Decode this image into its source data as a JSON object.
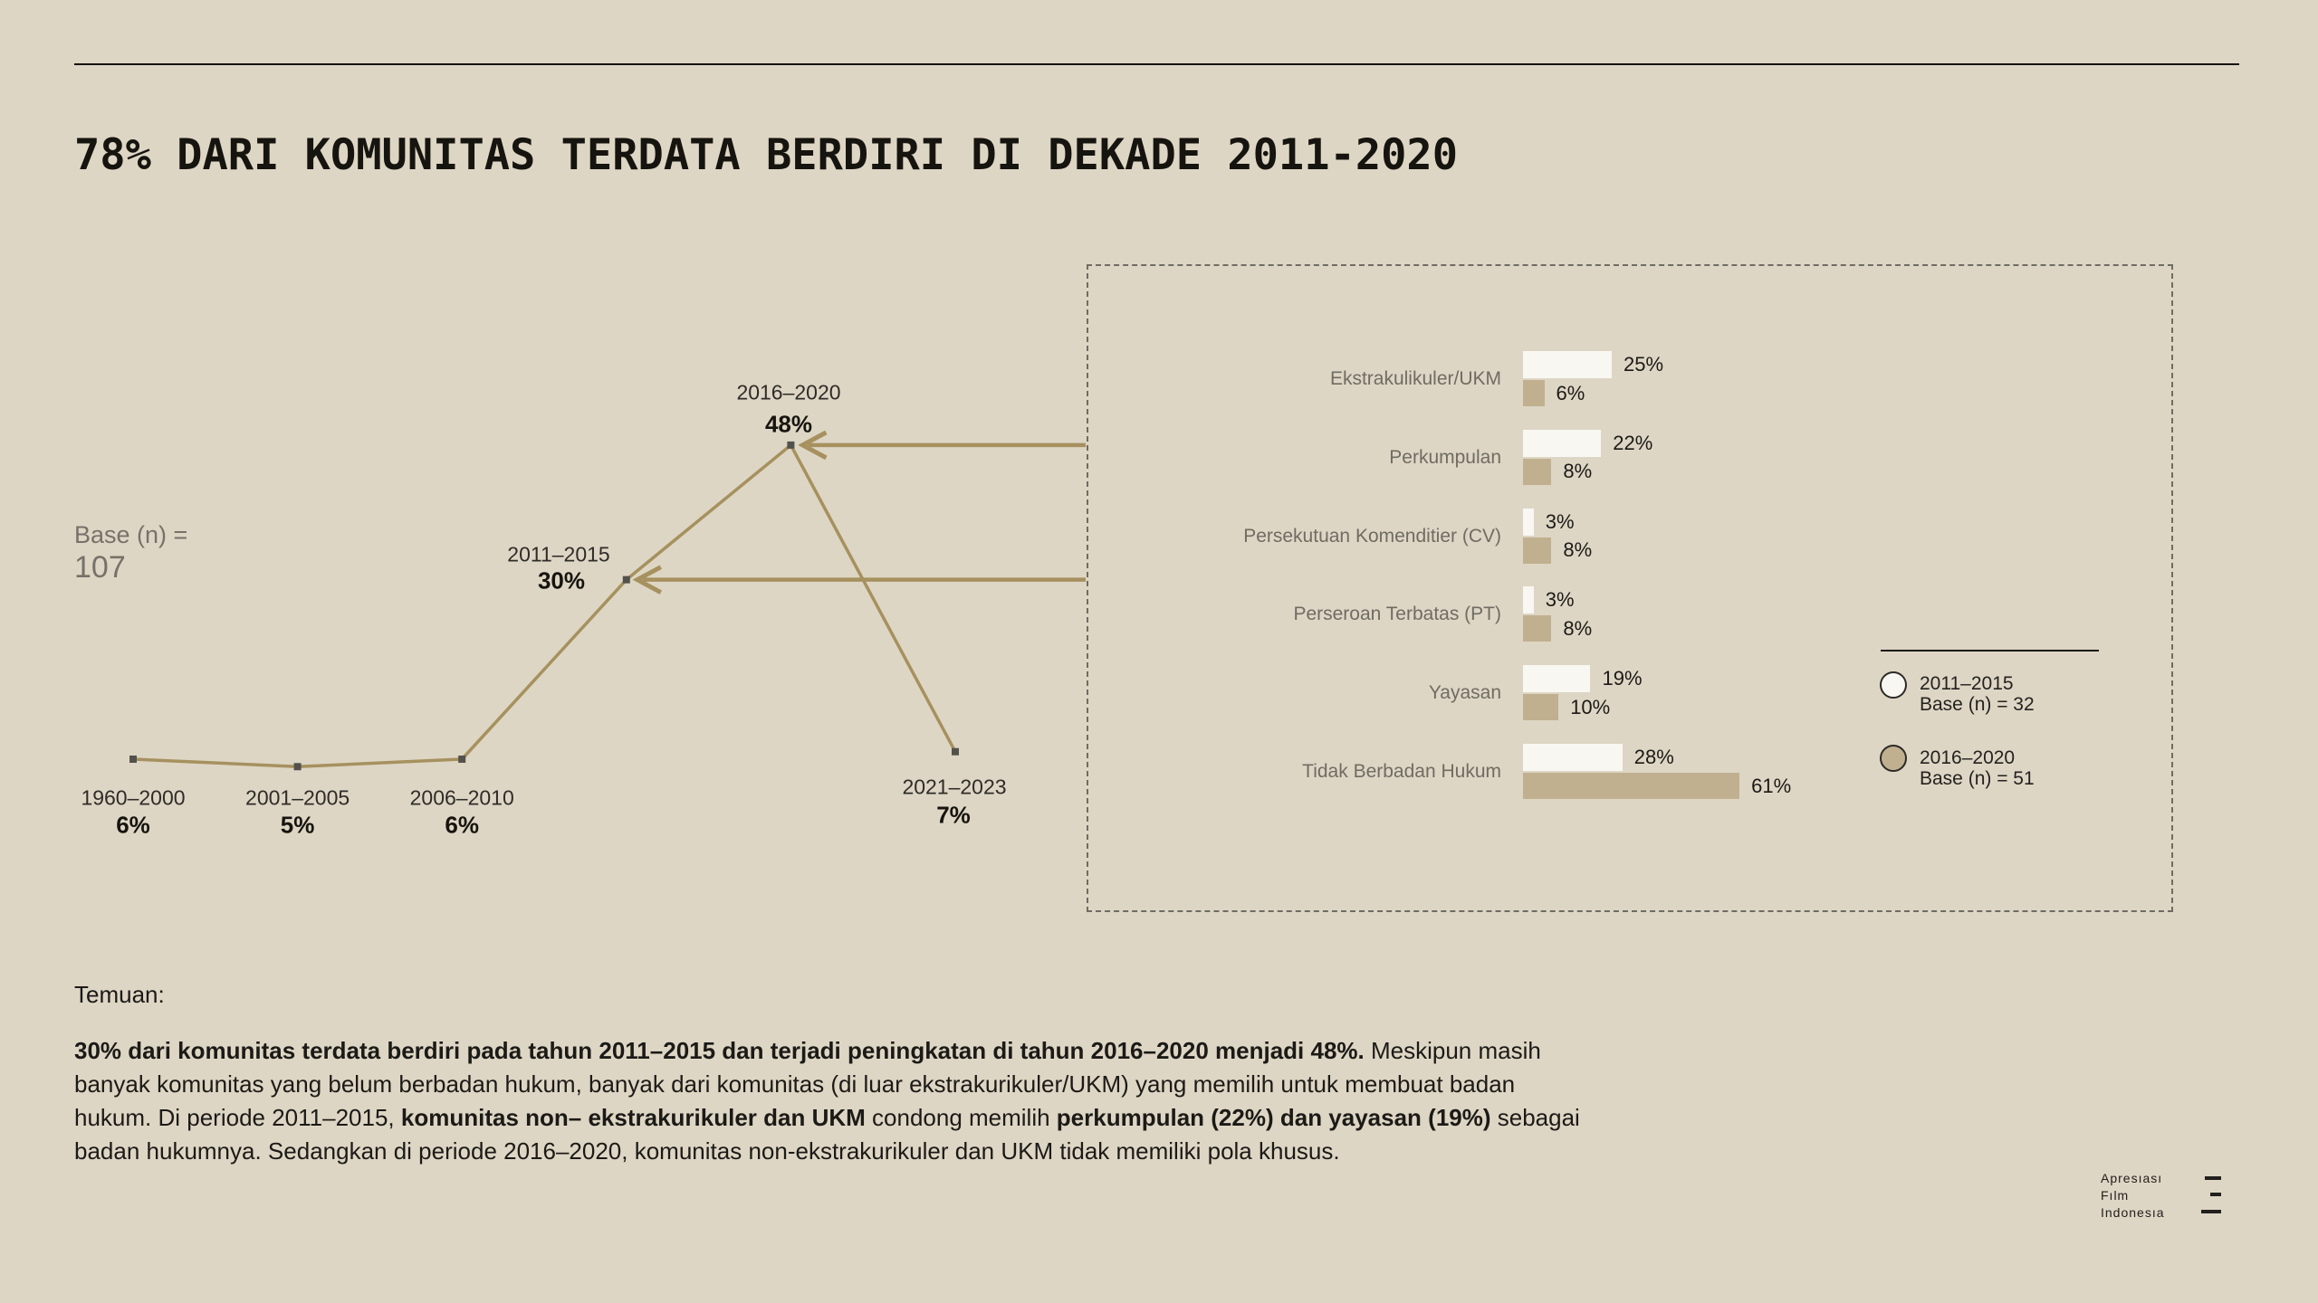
{
  "header": {},
  "chart_data": [
    {
      "type": "line",
      "title": "78% DARI KOMUNITAS TERDATA BERDIRI DI DEKADE 2011-2020",
      "categories": [
        "1960–2000",
        "2001–2005",
        "2006–2010",
        "2011–2015",
        "2016–2020",
        "2021–2023"
      ],
      "values": [
        6,
        5,
        6,
        30,
        48,
        7
      ],
      "unit": "%",
      "base_label": "Base (n) =",
      "base_value": "107",
      "line_color": "#a6915f",
      "marker_color": "#53514b",
      "grid": false
    },
    {
      "type": "bar",
      "orientation": "horizontal",
      "categories": [
        "Ekstrakulikuler/UKM",
        "Perkumpulan",
        "Persekutuan Komenditier (CV)",
        "Perseroan Terbatas (PT)",
        "Yayasan",
        "Tidak Berbadan Hukum"
      ],
      "series": [
        {
          "name": "2011–2015",
          "base": "Base (n) = 32",
          "color": "#f9f7f2",
          "values": [
            25,
            22,
            3,
            3,
            19,
            28
          ]
        },
        {
          "name": "2016–2020",
          "base": "Base (n) = 51",
          "color": "#c1b08f",
          "values": [
            6,
            8,
            8,
            8,
            10,
            61
          ]
        }
      ],
      "unit": "%",
      "xlim": [
        0,
        65
      ],
      "grid": false,
      "legend_position": "right"
    }
  ],
  "findings": {
    "heading": "Temuan:",
    "lines": [
      [
        {
          "b": 1,
          "t": "30% dari komunitas terdata berdiri pada tahun 2011–2015 dan terjadi peningkatan di  tahun 2016–2020 menjadi 48%."
        },
        {
          "b": 0,
          "t": " Meskipun masih"
        }
      ],
      [
        {
          "b": 0,
          "t": "banyak komunitas yang belum berbadan hukum, banyak dari komunitas  (di luar ekstrakurikuler/UKM) yang memilih untuk membuat badan"
        }
      ],
      [
        {
          "b": 0,
          "t": "hukum. Di periode 2011–2015, "
        },
        {
          "b": 1,
          "t": "komunitas non– ekstrakurikuler dan UKM"
        },
        {
          "b": 0,
          "t": " condong memilih "
        },
        {
          "b": 1,
          "t": "perkumpulan (22%) dan yayasan (19%)"
        },
        {
          "b": 0,
          "t": " sebagai"
        }
      ],
      [
        {
          "b": 0,
          "t": "badan hukumnya. Sedangkan di periode 2016–2020, komunitas non-ekstrakurikuler dan UKM tidak memiliki pola khusus."
        }
      ]
    ]
  },
  "logo": {
    "lines": [
      "Apresıası",
      "Fılm",
      "Indonesıa"
    ]
  }
}
